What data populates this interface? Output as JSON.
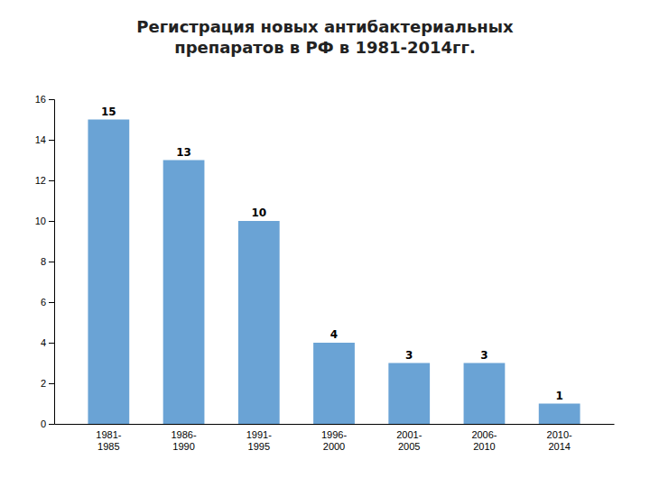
{
  "chart_data": {
    "type": "bar",
    "title": "Регистрация новых антибактериальных\nпрепаратов в РФ в 1981-2014гг.",
    "categories": [
      "1981-\n1985",
      "1986-\n1990",
      "1991-\n1995",
      "1996-\n2000",
      "2001-\n2005",
      "2006-\n2010",
      "2010-\n2014"
    ],
    "values": [
      15,
      13,
      10,
      4,
      3,
      3,
      1
    ],
    "color": "#6AA3D5",
    "ylim": [
      0,
      16
    ],
    "yticks": [
      0,
      2,
      4,
      6,
      8,
      10,
      12,
      14,
      16
    ],
    "grid": false,
    "data_labels": true
  }
}
